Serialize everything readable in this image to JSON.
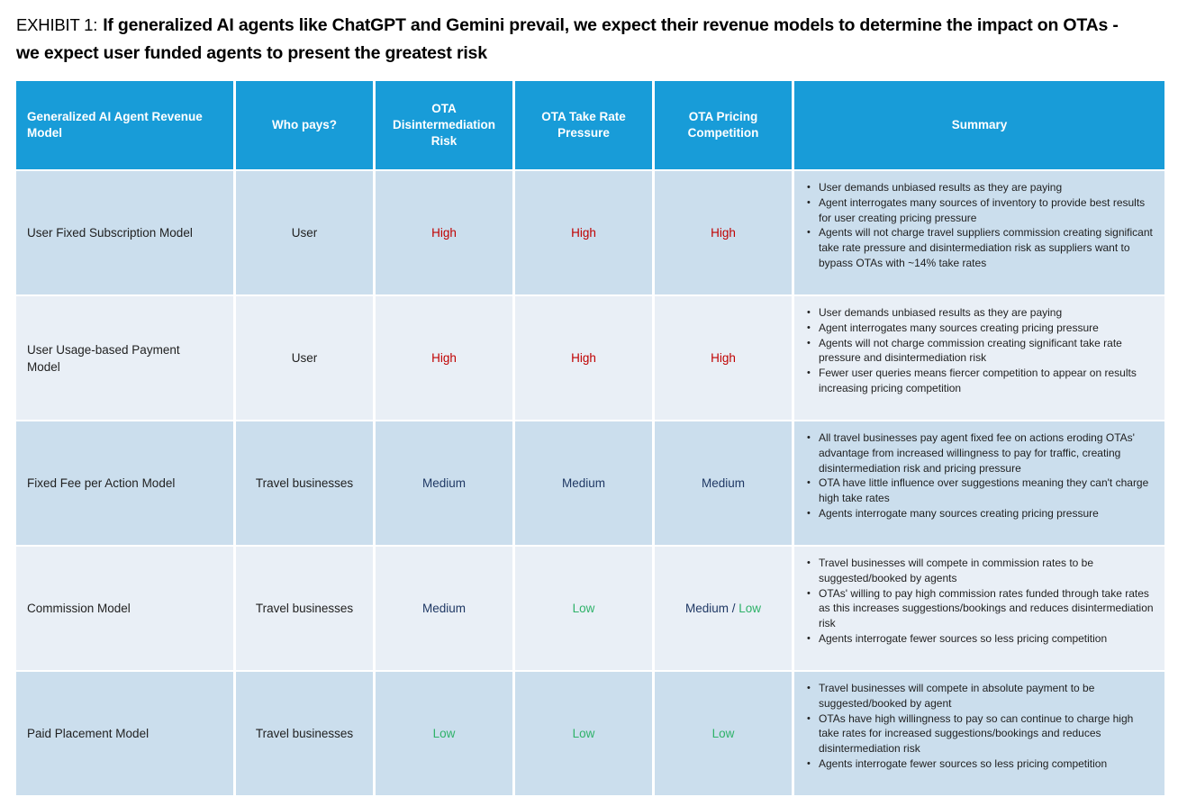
{
  "title": {
    "prefix": "EXHIBIT 1:",
    "text": "If generalized AI agents like ChatGPT and Gemini prevail, we expect their revenue models to determine the impact on OTAs - we expect user funded agents to present the greatest risk"
  },
  "colors": {
    "header_bg": "#189cd8",
    "header_text": "#ffffff",
    "row_dark": "#cbdeed",
    "row_light": "#e9eff6",
    "body_text": "#1f1f1f",
    "high": "#c00000",
    "medium": "#1f3864",
    "low": "#2eb269"
  },
  "table": {
    "columns": [
      {
        "key": "revenue-model",
        "label": "Generalized AI Agent Revenue Model"
      },
      {
        "key": "who-pays",
        "label": "Who pays?"
      },
      {
        "key": "disintermediation-risk",
        "label": "OTA Disintermediation Risk"
      },
      {
        "key": "take-rate-pressure",
        "label": "OTA Take Rate Pressure"
      },
      {
        "key": "pricing-competition",
        "label": "OTA Pricing Competition"
      },
      {
        "key": "summary",
        "label": "Summary"
      }
    ],
    "rows": [
      {
        "model": "User Fixed Subscription Model",
        "who_pays": "User",
        "ratings": {
          "disintermediation_risk": [
            {
              "text": "High",
              "level": "high"
            }
          ],
          "take_rate_pressure": [
            {
              "text": "High",
              "level": "high"
            }
          ],
          "pricing_competition": [
            {
              "text": "High",
              "level": "high"
            }
          ]
        },
        "summary": [
          "User demands unbiased results as they are paying",
          "Agent interrogates many sources of inventory to provide best results for user creating pricing pressure",
          "Agents will not charge travel suppliers commission creating significant take rate pressure and disintermediation risk as suppliers want to bypass OTAs with ~14% take rates"
        ]
      },
      {
        "model": "User Usage-based Payment Model",
        "who_pays": "User",
        "ratings": {
          "disintermediation_risk": [
            {
              "text": "High",
              "level": "high"
            }
          ],
          "take_rate_pressure": [
            {
              "text": "High",
              "level": "high"
            }
          ],
          "pricing_competition": [
            {
              "text": "High",
              "level": "high"
            }
          ]
        },
        "summary": [
          "User demands unbiased results as they are paying",
          "Agent interrogates many sources creating pricing pressure",
          "Agents will not charge commission creating significant take rate pressure and disintermediation risk",
          "Fewer user queries means fiercer competition to appear on results increasing pricing competition"
        ]
      },
      {
        "model": "Fixed Fee per Action Model",
        "who_pays": "Travel businesses",
        "ratings": {
          "disintermediation_risk": [
            {
              "text": "Medium",
              "level": "medium"
            }
          ],
          "take_rate_pressure": [
            {
              "text": "Medium",
              "level": "medium"
            }
          ],
          "pricing_competition": [
            {
              "text": "Medium",
              "level": "medium"
            }
          ]
        },
        "summary": [
          "All travel businesses pay agent fixed fee on actions eroding OTAs' advantage from increased willingness to pay for traffic, creating disintermediation risk and pricing pressure",
          "OTA have little influence over suggestions meaning they can't charge high take rates",
          "Agents interrogate many sources creating pricing pressure"
        ]
      },
      {
        "model": "Commission Model",
        "who_pays": "Travel businesses",
        "ratings": {
          "disintermediation_risk": [
            {
              "text": "Medium",
              "level": "medium"
            }
          ],
          "take_rate_pressure": [
            {
              "text": "Low",
              "level": "low"
            }
          ],
          "pricing_competition": [
            {
              "text": "Medium",
              "level": "medium"
            },
            {
              "text": " / ",
              "level": "sep"
            },
            {
              "text": "Low",
              "level": "low"
            }
          ]
        },
        "summary": [
          "Travel businesses will compete in commission rates to be suggested/booked by agents",
          "OTAs' willing to pay high commission rates funded through take rates as this increases suggestions/bookings and reduces disintermediation risk",
          "Agents interrogate fewer sources so less pricing competition"
        ]
      },
      {
        "model": "Paid Placement Model",
        "who_pays": "Travel businesses",
        "ratings": {
          "disintermediation_risk": [
            {
              "text": "Low",
              "level": "low"
            }
          ],
          "take_rate_pressure": [
            {
              "text": "Low",
              "level": "low"
            }
          ],
          "pricing_competition": [
            {
              "text": "Low",
              "level": "low"
            }
          ]
        },
        "summary": [
          "Travel businesses will compete in absolute payment to be suggested/booked by agent",
          "OTAs have high willingness to pay so can continue to charge high take rates for increased suggestions/bookings and reduces disintermediation risk",
          "Agents interrogate fewer sources so less pricing competition"
        ]
      }
    ]
  }
}
